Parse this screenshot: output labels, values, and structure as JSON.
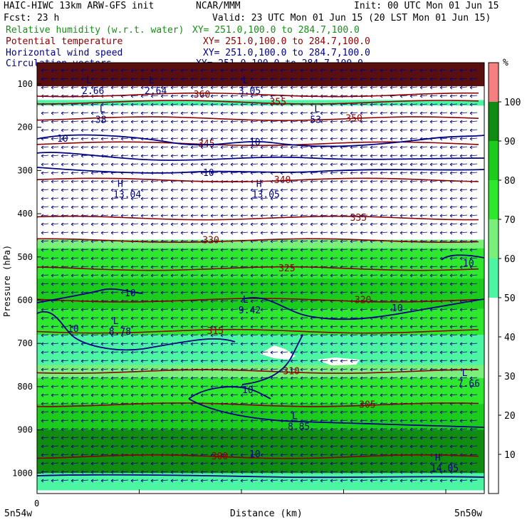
{
  "header": {
    "line1_left": "HAIC-HIWC 13km ARW-GFS init",
    "line1_mid": "NCAR/MMM",
    "line1_right": "Init: 00 UTC Mon 01 Jun 15",
    "line2_left": "Fcst:   23 h",
    "line2_right": "Valid: 23 UTC Mon 01 Jun 15 (20 LST Mon 01 Jun 15)",
    "fields": [
      {
        "name": "Relative humidity (w.r.t. water)",
        "xy": "XY= 251.0,100.0 to 284.7,100.0",
        "color": "#1a8c1a"
      },
      {
        "name": "Potential temperature",
        "xy": "XY= 251.0,100.0 to 284.7,100.0",
        "color": "#8b0000"
      },
      {
        "name": "Horizontal wind speed",
        "xy": "XY= 251.0,100.0 to 284.7,100.0",
        "color": "#000080"
      },
      {
        "name": "Circulation vectors",
        "xy": "XY= 251.0,100.0 to 284.7,100.0",
        "color": "#000080"
      }
    ]
  },
  "chart_data": {
    "type": "heatmap",
    "title": "HAIC-HIWC 13km ARW-GFS init",
    "xlabel": "Distance (km)",
    "ylabel": "Pressure (hPa)",
    "x_tick_labels": [
      "0"
    ],
    "x_end_labels": [
      "5n54w",
      "5n50w"
    ],
    "y_ticks": [
      100,
      200,
      300,
      400,
      500,
      600,
      700,
      800,
      900,
      1000
    ],
    "ylim": [
      50,
      1050
    ],
    "colorbar": {
      "unit": "%",
      "ticks": [
        10,
        20,
        30,
        40,
        50,
        60,
        70,
        80,
        90,
        100
      ],
      "bins": [
        {
          "range": [
            0,
            50
          ],
          "color": "#ffffff"
        },
        {
          "range": [
            50,
            60
          ],
          "color": "#4cf5a2"
        },
        {
          "range": [
            60,
            70
          ],
          "color": "#7af07a"
        },
        {
          "range": [
            70,
            80
          ],
          "color": "#2ee82e"
        },
        {
          "range": [
            80,
            90
          ],
          "color": "#1ccc1c"
        },
        {
          "range": [
            90,
            100
          ],
          "color": "#108c10"
        },
        {
          "range": [
            100,
            110
          ],
          "color": "#f48080"
        }
      ]
    },
    "rh_bands": [
      {
        "top": 50,
        "bottom": 105,
        "color": "#5a0f0f"
      },
      {
        "top": 137,
        "bottom": 150,
        "color": "#4cf5a2"
      },
      {
        "top": 460,
        "bottom": 1040,
        "color": "#4cf5a2"
      },
      {
        "top": 460,
        "bottom": 480,
        "color": "#7af07a"
      },
      {
        "top": 480,
        "bottom": 550,
        "color": "#2ee82e"
      },
      {
        "top": 550,
        "bottom": 620,
        "color": "#1ccc1c"
      },
      {
        "top": 620,
        "bottom": 680,
        "color": "#2ee82e"
      },
      {
        "top": 680,
        "bottom": 750,
        "color": "#4cf5a2"
      },
      {
        "top": 750,
        "bottom": 780,
        "color": "#7af07a"
      },
      {
        "top": 780,
        "bottom": 840,
        "color": "#2ee82e"
      },
      {
        "top": 840,
        "bottom": 990,
        "color": "#1ccc1c"
      },
      {
        "top": 900,
        "bottom": 1000,
        "color": "#108c10"
      }
    ],
    "theta_contours": [
      {
        "label": "360",
        "p": 125
      },
      {
        "label": "355",
        "p": 142
      },
      {
        "label": "350",
        "p": 180
      },
      {
        "label": "345",
        "p": 238
      },
      {
        "label": "340",
        "p": 322
      },
      {
        "label": "335",
        "p": 410
      },
      {
        "label": "330",
        "p": 462
      },
      {
        "label": "325",
        "p": 527
      },
      {
        "label": "320",
        "p": 600
      },
      {
        "label": "315",
        "p": 672
      },
      {
        "label": "310",
        "p": 765
      },
      {
        "label": "305",
        "p": 842
      },
      {
        "label": "300",
        "p": 962
      }
    ],
    "wind_contour_label": "10",
    "extrema": [
      {
        "type": "L",
        "value": "2.66",
        "x": 0.11,
        "p": 105
      },
      {
        "type": "L",
        "value": "2.64",
        "x": 0.25,
        "p": 105
      },
      {
        "type": "L",
        "value": "3.05",
        "x": 0.46,
        "p": 105
      },
      {
        "type": "L",
        "value": "38",
        "x": 0.14,
        "p": 172
      },
      {
        "type": "L",
        "value": "53",
        "x": 0.62,
        "p": 172
      },
      {
        "type": "H",
        "value": "13.04",
        "x": 0.18,
        "p": 345
      },
      {
        "type": "H",
        "value": "13.05",
        "x": 0.49,
        "p": 345
      },
      {
        "type": "L",
        "value": "9.42",
        "x": 0.46,
        "p": 612
      },
      {
        "type": "L",
        "value": "8.78",
        "x": 0.17,
        "p": 662
      },
      {
        "type": "L",
        "value": "7.66",
        "x": 0.95,
        "p": 782
      },
      {
        "type": "L",
        "value": "8.85",
        "x": 0.57,
        "p": 882
      },
      {
        "type": "H",
        "value": "14.05",
        "x": 0.89,
        "p": 978
      }
    ]
  }
}
